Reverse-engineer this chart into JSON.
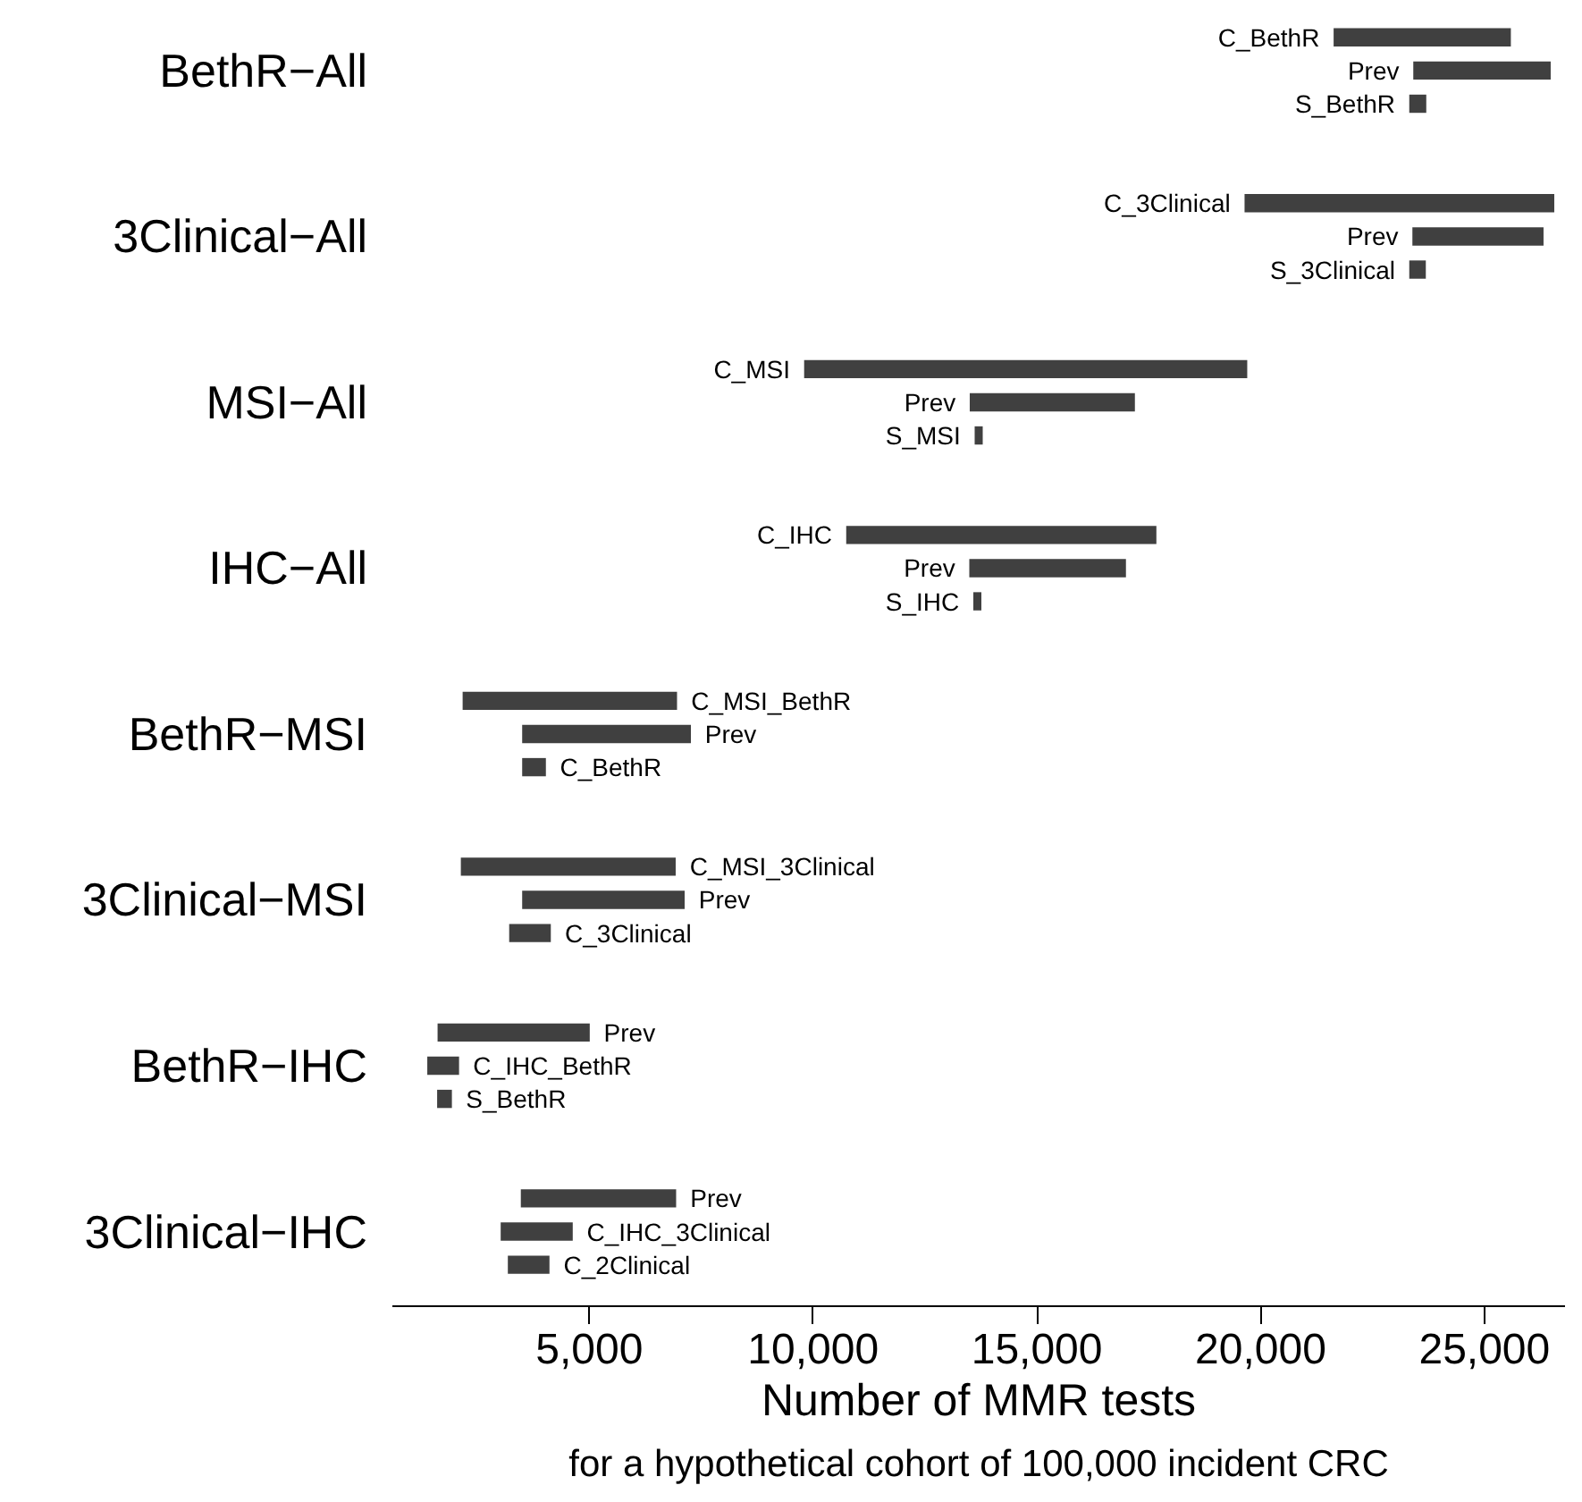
{
  "chart_data": {
    "type": "bar",
    "orientation": "horizontal",
    "xlabel": "Number of MMR tests",
    "categories": [
      "BethR−All",
      "3Clinical−All",
      "MSI−All",
      "IHC−All",
      "BethR−MSI",
      "3Clinical−MSI",
      "BethR−IHC",
      "3Clinical−IHC"
    ],
    "series": [
      {
        "color": "#404040",
        "base": [
          21630,
          19640,
          9800,
          10740,
          2170,
          2130,
          1610,
          3470
        ],
        "values": [
          3960,
          6920,
          9900,
          6930,
          4790,
          4800,
          3400,
          3470
        ]
      },
      {
        "color": "#404040",
        "base": [
          23410,
          23390,
          13500,
          13490,
          3500,
          3500,
          1380,
          3020
        ],
        "values": [
          3070,
          2930,
          3690,
          3500,
          3770,
          3630,
          710,
          1610
        ]
      },
      {
        "color": "#404040",
        "base": [
          23320,
          23320,
          13610,
          13580,
          3500,
          3210,
          1600,
          3180
        ],
        "values": [
          380,
          370,
          180,
          180,
          530,
          930,
          330,
          930
        ]
      }
    ],
    "annotations": [
      "C_BethR",
      "Prev",
      "S_BethR",
      "C_3Clinical",
      "Prev",
      "S_3Clinical",
      "C_MSI",
      "Prev",
      "S_MSI",
      "C_IHC",
      "Prev",
      "S_IHC",
      "C_MSI_BethR",
      "Prev",
      "C_BethR",
      "C_MSI_3Clinical",
      "Prev",
      "C_3Clinical",
      "Prev",
      "C_IHC_BethR",
      "S_BethR",
      "Prev",
      "C_IHC_3Clinical",
      "C_2Clinical",
      "for a hypothetical cohort of 100,000 incident CRC"
    ],
    "xlim": [
      600,
      26800
    ],
    "xticks": [
      {
        "value": 5000,
        "label": "5,000"
      },
      {
        "value": 10000,
        "label": "10,000"
      },
      {
        "value": 15000,
        "label": "15,000"
      },
      {
        "value": 20000,
        "label": "20,000"
      },
      {
        "value": 25000,
        "label": "25,000"
      }
    ],
    "grid": false
  }
}
